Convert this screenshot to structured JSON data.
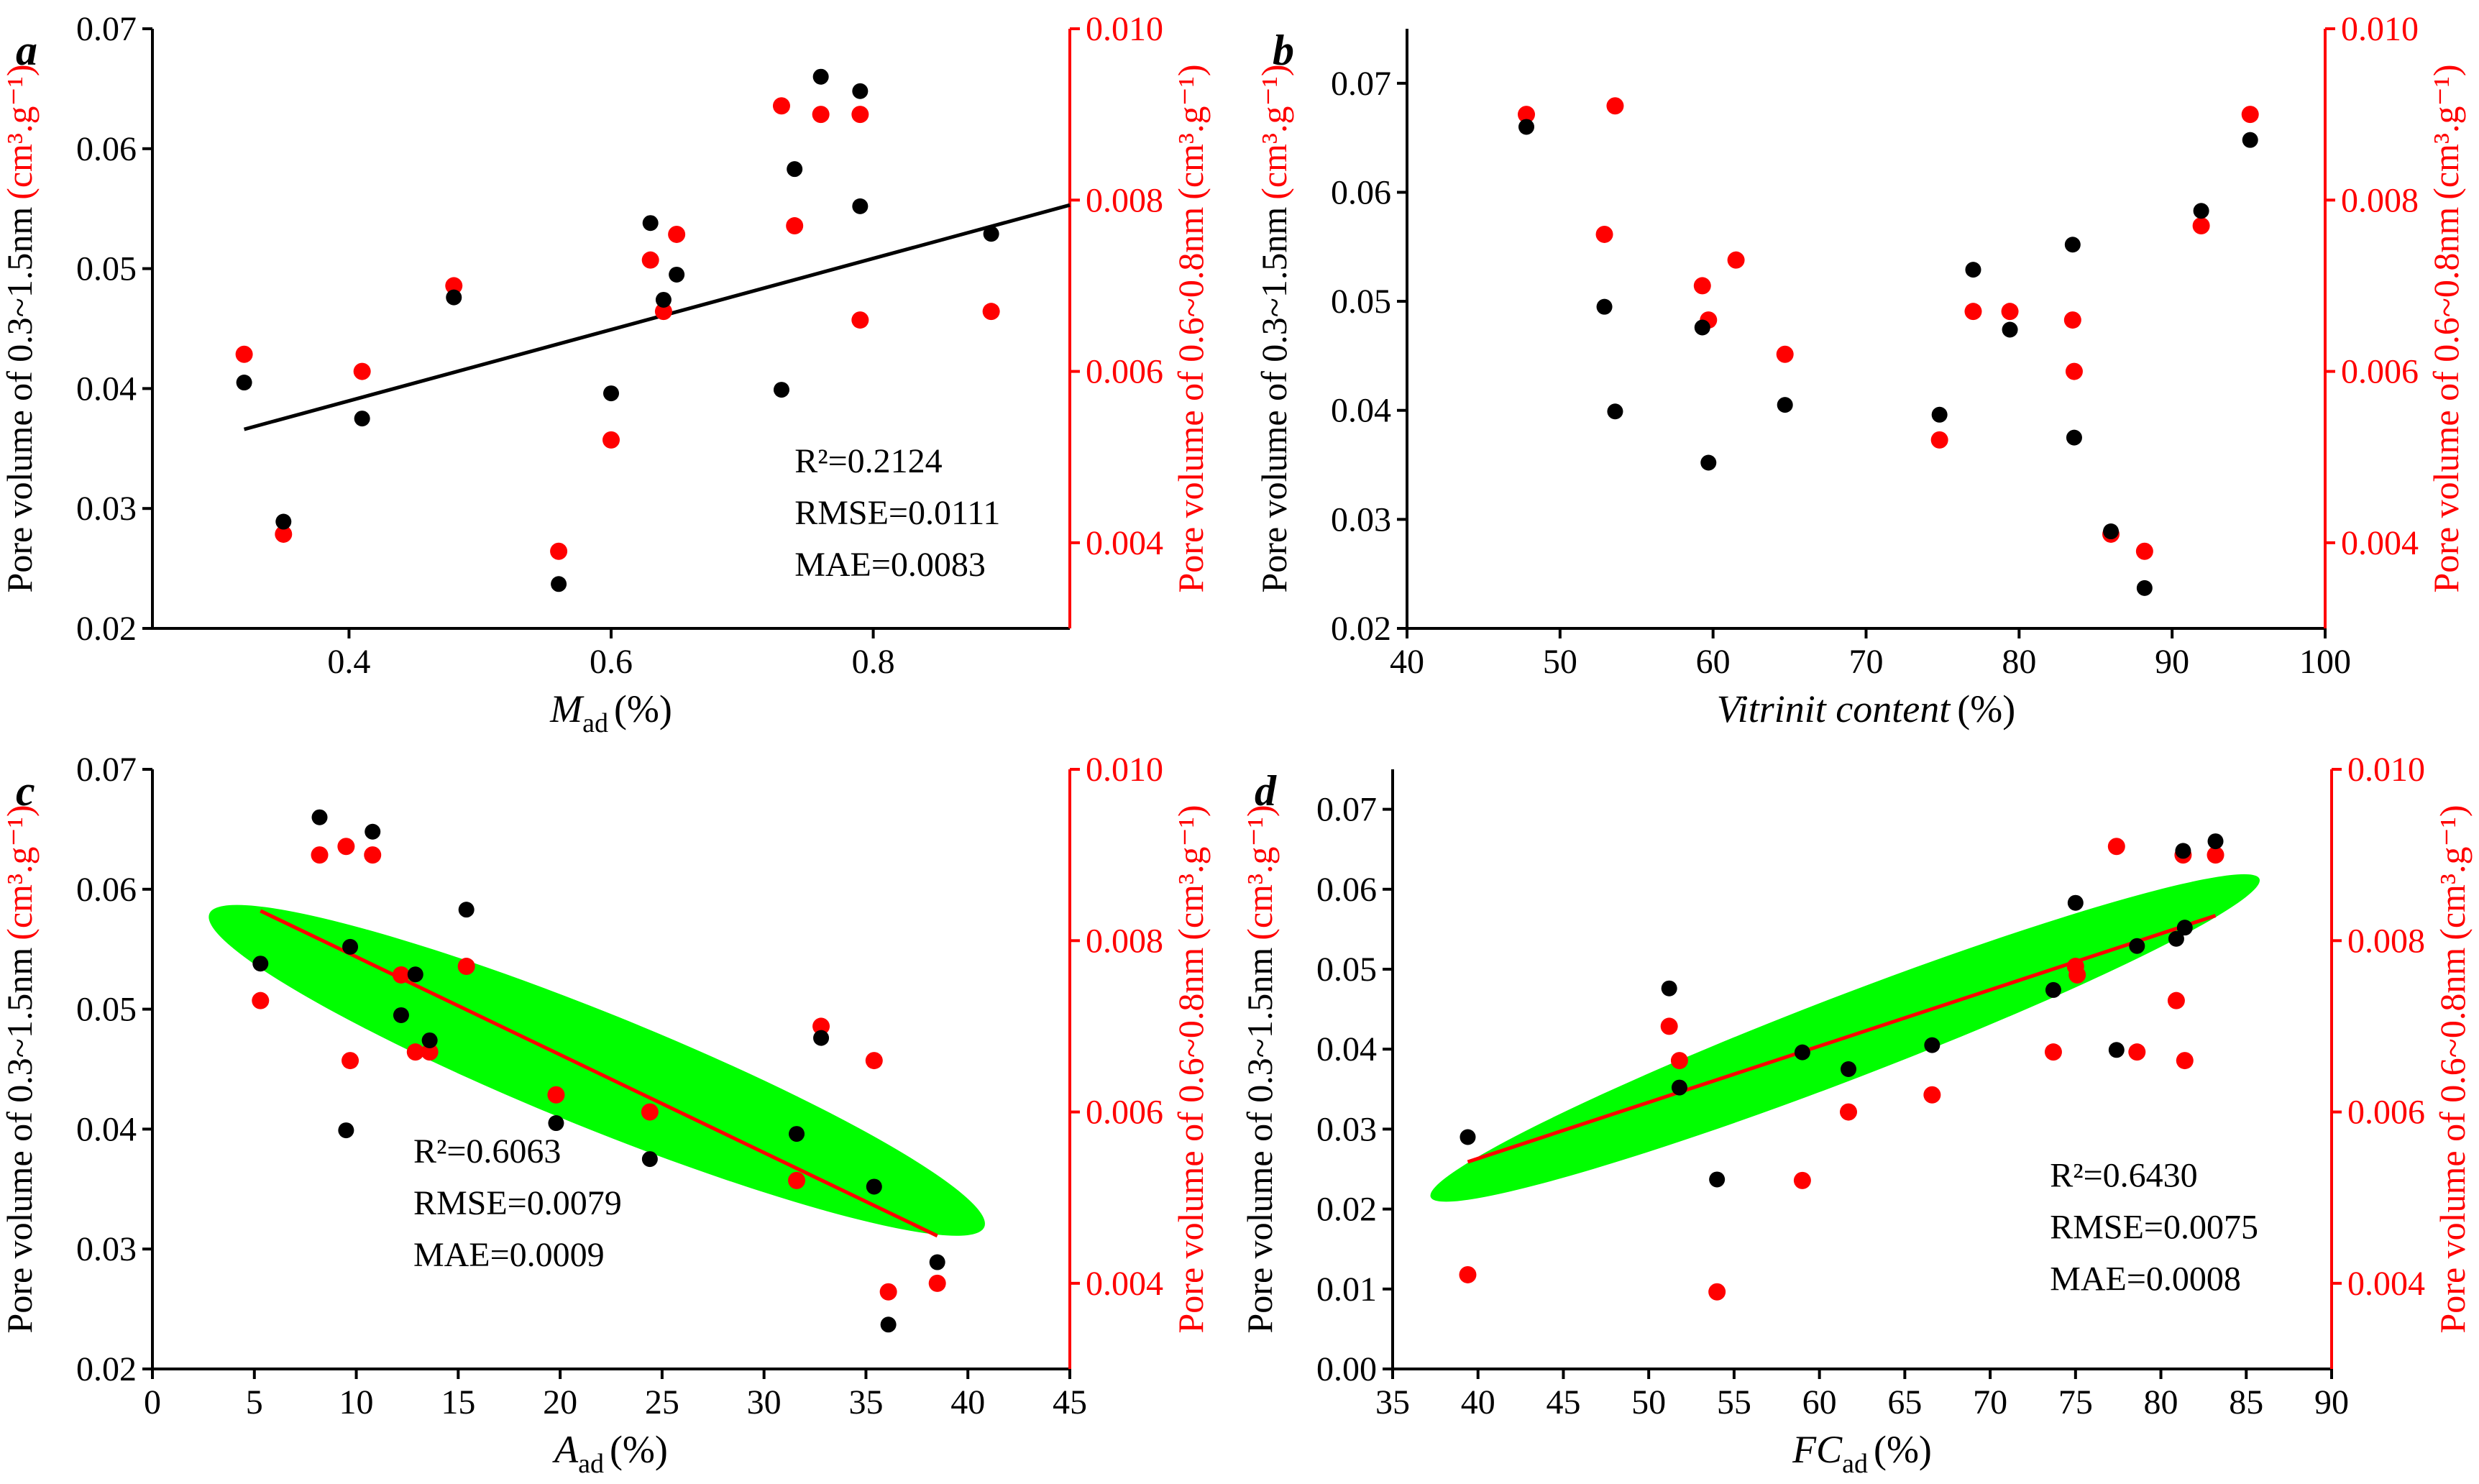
{
  "figure": {
    "colors": {
      "axis_left": "#000000",
      "axis_right": "#ff0000",
      "black_points": "#000000",
      "red_points": "#ff0000",
      "ellipse": "#00ff00",
      "fit_black": "#000000",
      "fit_red": "#ff0000"
    }
  },
  "chart_data": [
    {
      "id": "a",
      "type": "scatter",
      "panel_label": "a",
      "xlabel_main": "M",
      "xlabel_sub": "ad",
      "xlabel_unit": "(%)",
      "ylabel_left": "Pore volume of 0.3~1.5nm",
      "ylabel_left_unit": "(cm³.g⁻¹)",
      "ylabel_right": "Pore volume of 0.6~0.8nm",
      "ylabel_right_unit": "(cm³.g⁻¹)",
      "xlim": [
        0.25,
        0.95
      ],
      "xticks": [
        0.4,
        0.6,
        0.8
      ],
      "xtick_labels": [
        "0.4",
        "0.6",
        "0.8"
      ],
      "ylim_left": [
        0.02,
        0.07
      ],
      "yticks_left": [
        0.02,
        0.03,
        0.04,
        0.05,
        0.06,
        0.07
      ],
      "ytick_labels_left": [
        "0.02",
        "0.03",
        "0.04",
        "0.05",
        "0.06",
        "0.07"
      ],
      "ylim_right": [
        0.003,
        0.01
      ],
      "yticks_right": [
        0.004,
        0.006,
        0.008,
        0.01
      ],
      "ytick_labels_right": [
        "0.004",
        "0.006",
        "0.008",
        "0.010"
      ],
      "series_black": {
        "name": "Pore volume of 0.3~1.5nm",
        "x": [
          0.32,
          0.35,
          0.41,
          0.48,
          0.56,
          0.6,
          0.63,
          0.64,
          0.65,
          0.73,
          0.74,
          0.76,
          0.79,
          0.79,
          0.89
        ],
        "y": [
          0.0405,
          0.0289,
          0.0375,
          0.0476,
          0.0237,
          0.0396,
          0.0538,
          0.0474,
          0.0495,
          0.0399,
          0.0583,
          0.066,
          0.0648,
          0.0552,
          0.0529
        ]
      },
      "series_red": {
        "name": "Pore volume of 0.6~0.8nm",
        "x": [
          0.32,
          0.35,
          0.41,
          0.48,
          0.56,
          0.6,
          0.63,
          0.64,
          0.65,
          0.73,
          0.74,
          0.76,
          0.79,
          0.79,
          0.89
        ],
        "y": [
          0.0062,
          0.0041,
          0.006,
          0.007,
          0.0039,
          0.0052,
          0.0073,
          0.0067,
          0.0076,
          0.0091,
          0.0077,
          0.009,
          0.009,
          0.0066,
          0.0067
        ]
      },
      "fit": {
        "axis": "left",
        "color": "black",
        "x": [
          0.32,
          0.95
        ],
        "y": [
          0.0366,
          0.0553
        ]
      },
      "ellipse": null,
      "annotations": [
        "R²=0.2124",
        "RMSE=0.0111",
        "MAE=0.0083"
      ],
      "annotation_pos": [
        0.74,
        0.033
      ]
    },
    {
      "id": "b",
      "type": "scatter",
      "panel_label": "b",
      "xlabel_main": "Vitrinit content",
      "xlabel_sub": "",
      "xlabel_unit": "(%)",
      "ylabel_left": "Pore volume of 0.3~1.5nm",
      "ylabel_left_unit": "(cm³.g⁻¹)",
      "ylabel_right": "Pore volume of 0.6~0.8nm",
      "ylabel_right_unit": "(cm³.g⁻¹)",
      "xlim": [
        40,
        100
      ],
      "xticks": [
        40,
        50,
        60,
        70,
        80,
        90,
        100
      ],
      "xtick_labels": [
        "40",
        "50",
        "60",
        "70",
        "80",
        "90",
        "100"
      ],
      "ylim_left": [
        0.02,
        0.075
      ],
      "yticks_left": [
        0.02,
        0.03,
        0.04,
        0.05,
        0.06,
        0.07
      ],
      "ytick_labels_left": [
        "0.02",
        "0.03",
        "0.04",
        "0.05",
        "0.06",
        "0.07"
      ],
      "ylim_right": [
        0.003,
        0.01
      ],
      "yticks_right": [
        0.004,
        0.006,
        0.008,
        0.01
      ],
      "ytick_labels_right": [
        "0.004",
        "0.006",
        "0.008",
        "0.010"
      ],
      "series_black": {
        "name": "Pore volume of 0.3~1.5nm",
        "x": [
          47.8,
          52.9,
          53.6,
          59.3,
          59.7,
          64.7,
          74.8,
          77.0,
          79.4,
          83.5,
          83.6,
          86.0,
          88.2,
          91.9,
          95.1
        ],
        "y": [
          0.066,
          0.0495,
          0.0399,
          0.0476,
          0.0352,
          0.0405,
          0.0396,
          0.0529,
          0.0474,
          0.0552,
          0.0375,
          0.0289,
          0.0237,
          0.0583,
          0.0648
        ]
      },
      "series_red": {
        "name": "Pore volume of 0.6~0.8nm",
        "x": [
          47.8,
          52.9,
          53.6,
          59.3,
          59.7,
          61.5,
          64.7,
          74.8,
          77.0,
          79.4,
          83.5,
          83.6,
          86.0,
          88.2,
          91.9,
          95.1
        ],
        "y": [
          0.009,
          0.0076,
          0.0091,
          0.007,
          0.0066,
          0.0073,
          0.0062,
          0.0052,
          0.0067,
          0.0067,
          0.0066,
          0.006,
          0.0041,
          0.0039,
          0.0077,
          0.009
        ]
      },
      "fit": null,
      "ellipse": null,
      "annotations": [],
      "annotation_pos": null
    },
    {
      "id": "c",
      "type": "scatter",
      "panel_label": "c",
      "xlabel_main": "A",
      "xlabel_sub": "ad",
      "xlabel_unit": "(%)",
      "ylabel_left": "Pore volume of 0.3~1.5nm",
      "ylabel_left_unit": "(cm³.g⁻¹)",
      "ylabel_right": "Pore volume of 0.6~0.8nm",
      "ylabel_right_unit": "(cm³.g⁻¹)",
      "xlim": [
        0,
        45
      ],
      "xticks": [
        0,
        5,
        10,
        15,
        20,
        25,
        30,
        35,
        40,
        45
      ],
      "xtick_labels": [
        "0",
        "5",
        "10",
        "15",
        "20",
        "25",
        "30",
        "35",
        "40",
        "45"
      ],
      "ylim_left": [
        0.02,
        0.07
      ],
      "yticks_left": [
        0.02,
        0.03,
        0.04,
        0.05,
        0.06,
        0.07
      ],
      "ytick_labels_left": [
        "0.02",
        "0.03",
        "0.04",
        "0.05",
        "0.06",
        "0.07"
      ],
      "ylim_right": [
        0.003,
        0.01
      ],
      "yticks_right": [
        0.004,
        0.006,
        0.008,
        0.01
      ],
      "ytick_labels_right": [
        "0.004",
        "0.006",
        "0.008",
        "0.010"
      ],
      "series_black": {
        "name": "Pore volume of 0.3~1.5nm",
        "x": [
          5.3,
          8.2,
          9.5,
          9.7,
          10.8,
          12.2,
          12.9,
          13.6,
          15.4,
          19.8,
          24.4,
          31.6,
          32.8,
          35.4,
          36.1,
          38.5
        ],
        "y": [
          0.0538,
          0.066,
          0.0399,
          0.0552,
          0.0648,
          0.0495,
          0.0529,
          0.0474,
          0.0583,
          0.0405,
          0.0375,
          0.0396,
          0.0476,
          0.0352,
          0.0237,
          0.0289
        ]
      },
      "series_red": {
        "name": "Pore volume of 0.6~0.8nm",
        "x": [
          5.3,
          8.2,
          9.5,
          9.7,
          10.8,
          12.2,
          12.9,
          13.6,
          15.4,
          19.8,
          24.4,
          31.6,
          32.8,
          35.4,
          36.1,
          38.5
        ],
        "y": [
          0.0073,
          0.009,
          0.0091,
          0.0066,
          0.009,
          0.0076,
          0.0067,
          0.0067,
          0.0077,
          0.0062,
          0.006,
          0.0052,
          0.007,
          0.0066,
          0.0039,
          0.004
        ]
      },
      "fit": {
        "axis": "left",
        "color": "red",
        "x": [
          5.3,
          38.5
        ],
        "y": [
          0.0582,
          0.0311
        ]
      },
      "ellipse": {
        "cx": 21.8,
        "cy": 0.0449,
        "rx_x": 20.5,
        "ry_y": 0.0048,
        "angle_deg": 22
      },
      "annotations": [
        "R²=0.6063",
        "RMSE=0.0079",
        "MAE=0.0009"
      ],
      "annotation_pos": [
        12.8,
        0.0372
      ]
    },
    {
      "id": "d",
      "type": "scatter",
      "panel_label": "d",
      "xlabel_main": "FC",
      "xlabel_sub": "ad",
      "xlabel_unit": "(%)",
      "ylabel_left": "Pore volume of 0.3~1.5nm",
      "ylabel_left_unit": "(cm³.g⁻¹)",
      "ylabel_right": "Pore volume of 0.6~0.8nm",
      "ylabel_right_unit": "(cm³.g⁻¹)",
      "xlim": [
        35,
        90
      ],
      "xticks": [
        35,
        40,
        45,
        50,
        55,
        60,
        65,
        70,
        75,
        80,
        85,
        90
      ],
      "xtick_labels": [
        "35",
        "40",
        "45",
        "50",
        "55",
        "60",
        "65",
        "70",
        "75",
        "80",
        "85",
        "90"
      ],
      "ylim_left": [
        0.0,
        0.075
      ],
      "yticks_left": [
        0.0,
        0.01,
        0.02,
        0.03,
        0.04,
        0.05,
        0.06,
        0.07
      ],
      "ytick_labels_left": [
        "0.00",
        "0.01",
        "0.02",
        "0.03",
        "0.04",
        "0.05",
        "0.06",
        "0.07"
      ],
      "ylim_right": [
        0.003,
        0.01
      ],
      "yticks_right": [
        0.004,
        0.006,
        0.008,
        0.01
      ],
      "ytick_labels_right": [
        "0.004",
        "0.006",
        "0.008",
        "0.010"
      ],
      "series_black": {
        "name": "Pore volume of 0.3~1.5nm",
        "x": [
          39.4,
          51.2,
          51.8,
          54.0,
          59.0,
          61.7,
          66.6,
          73.7,
          75.0,
          77.4,
          78.6,
          80.9,
          81.3,
          81.4,
          83.2
        ],
        "y": [
          0.029,
          0.0476,
          0.0352,
          0.0237,
          0.0396,
          0.0375,
          0.0405,
          0.0474,
          0.0583,
          0.0399,
          0.0529,
          0.0538,
          0.0648,
          0.0552,
          0.066
        ]
      },
      "series_red": {
        "name": "Pore volume of 0.6~0.8nm",
        "x": [
          39.4,
          51.2,
          51.8,
          54.0,
          59.0,
          61.7,
          66.6,
          73.7,
          75.0,
          75.1,
          77.4,
          78.6,
          80.9,
          81.3,
          81.4,
          83.2
        ],
        "y": [
          0.0041,
          0.007,
          0.0066,
          0.0039,
          0.0052,
          0.006,
          0.0062,
          0.0067,
          0.0077,
          0.0076,
          0.0091,
          0.0067,
          0.0073,
          0.009,
          0.0066,
          0.009
        ]
      },
      "fit": {
        "axis": "left",
        "color": "red",
        "x": [
          39.4,
          83.2
        ],
        "y": [
          0.0259,
          0.0567
        ]
      },
      "ellipse": {
        "cx": 61.5,
        "cy": 0.0414,
        "rx_x": 26.0,
        "ry_y": 0.0052,
        "angle_deg": -21
      },
      "annotations": [
        "R²=0.6430",
        "RMSE=0.0075",
        "MAE=0.0008"
      ],
      "annotation_pos": [
        73.5,
        0.0228
      ]
    }
  ]
}
